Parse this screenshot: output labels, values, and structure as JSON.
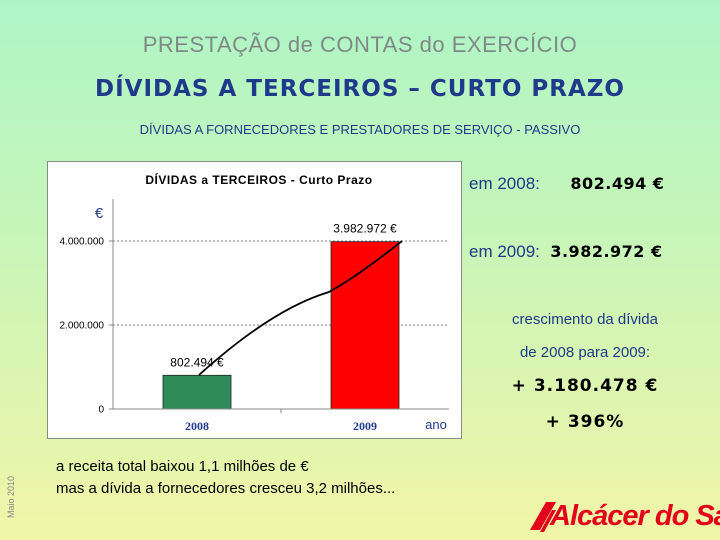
{
  "header": {
    "title": "PRESTAÇÃO de CONTAS do EXERCÍCIO",
    "heading": "DÍVIDAS A TERCEIROS – CURTO PRAZO",
    "subtitle": "DÍVIDAS A FORNECEDORES E PRESTADORES DE SERVIÇO - PASSIVO"
  },
  "chart_data": {
    "type": "bar",
    "title": "DÍVIDAS a TERCEIROS - Curto Prazo",
    "ylabel": "€",
    "xlabel": "ano",
    "categories": [
      "2008",
      "2009"
    ],
    "values": [
      802494,
      3982972
    ],
    "data_labels": [
      "802.494 €",
      "3.982.972 €"
    ],
    "bar_colors": [
      "#2e8b57",
      "#ff0000"
    ],
    "ylim": [
      0,
      4000000
    ],
    "yticks": [
      0,
      2000000,
      4000000
    ],
    "ytick_labels": [
      "0",
      "2.000.000",
      "4.000.000"
    ],
    "grid": true,
    "legend": false
  },
  "values_panel": {
    "year2008_label": "em 2008:",
    "year2008_value": "802.494 €",
    "year2009_label": "em 2009:",
    "year2009_value": "3.982.972 €"
  },
  "growth": {
    "line1": "crescimento da dívida",
    "line2": "de 2008 para 2009:",
    "amount": "+ 3.180.478 €",
    "percent": "+ 396%"
  },
  "notes": {
    "line1": "a receita total baixou 1,1 milhões de €",
    "line2": "mas a  dívida a fornecedores cresceu 3,2 milhões..."
  },
  "side_date": "Maio 2010",
  "logo": {
    "text": "Alcácer do Sal",
    "color": "#e3001b"
  }
}
